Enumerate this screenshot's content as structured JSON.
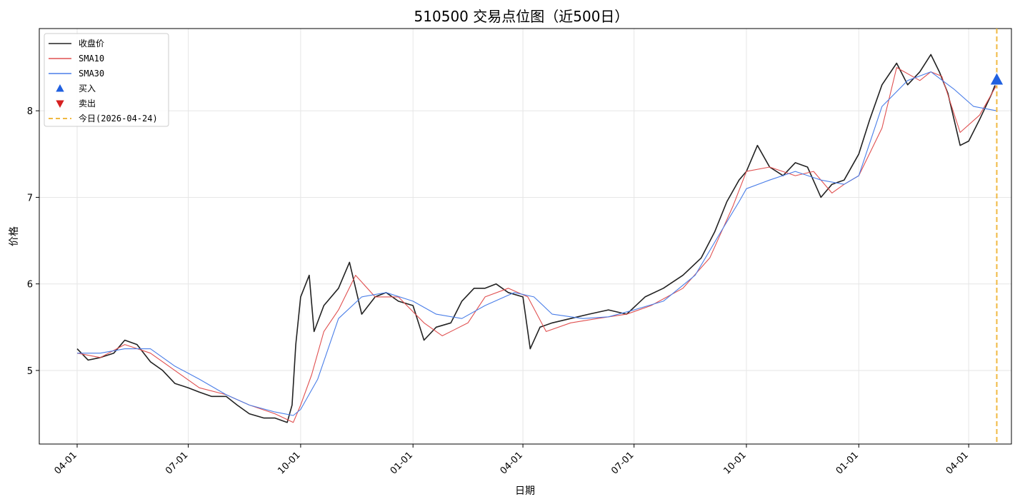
{
  "chart_data": {
    "type": "line",
    "title": "510500 交易点位图（近500日）",
    "xlabel": "日期",
    "ylabel": "价格",
    "ylim": [
      4.15,
      8.95
    ],
    "xlim": [
      "2024-03-01",
      "2026-05-06"
    ],
    "grid": true,
    "legend_position": "top-left",
    "x_ticks": [
      {
        "date": "2024-04-01",
        "label": "04-01"
      },
      {
        "date": "2024-07-01",
        "label": "07-01"
      },
      {
        "date": "2024-10-01",
        "label": "10-01"
      },
      {
        "date": "2025-01-01",
        "label": "01-01"
      },
      {
        "date": "2025-04-01",
        "label": "04-01"
      },
      {
        "date": "2025-07-01",
        "label": "07-01"
      },
      {
        "date": "2025-10-01",
        "label": "10-01"
      },
      {
        "date": "2026-01-01",
        "label": "01-01"
      },
      {
        "date": "2026-04-01",
        "label": "04-01"
      }
    ],
    "y_ticks": [
      5,
      6,
      7,
      8
    ],
    "series": [
      {
        "name": "收盘价",
        "color": "#222222",
        "x": [
          "2024-04-01",
          "2024-04-10",
          "2024-04-20",
          "2024-05-01",
          "2024-05-10",
          "2024-05-20",
          "2024-05-31",
          "2024-06-10",
          "2024-06-20",
          "2024-07-01",
          "2024-07-10",
          "2024-07-20",
          "2024-08-01",
          "2024-08-10",
          "2024-08-20",
          "2024-09-01",
          "2024-09-10",
          "2024-09-20",
          "2024-09-24",
          "2024-09-27",
          "2024-10-01",
          "2024-10-08",
          "2024-10-12",
          "2024-10-20",
          "2024-11-01",
          "2024-11-10",
          "2024-11-20",
          "2024-12-01",
          "2024-12-10",
          "2024-12-20",
          "2025-01-01",
          "2025-01-10",
          "2025-01-20",
          "2025-02-01",
          "2025-02-10",
          "2025-02-20",
          "2025-03-01",
          "2025-03-10",
          "2025-03-20",
          "2025-04-01",
          "2025-04-07",
          "2025-04-15",
          "2025-04-25",
          "2025-05-10",
          "2025-05-25",
          "2025-06-10",
          "2025-06-25",
          "2025-07-10",
          "2025-07-25",
          "2025-08-10",
          "2025-08-25",
          "2025-09-05",
          "2025-09-15",
          "2025-09-25",
          "2025-10-01",
          "2025-10-10",
          "2025-10-20",
          "2025-10-31",
          "2025-11-10",
          "2025-11-20",
          "2025-12-01",
          "2025-12-10",
          "2025-12-20",
          "2026-01-01",
          "2026-01-10",
          "2026-01-20",
          "2026-02-01",
          "2026-02-10",
          "2026-02-20",
          "2026-03-01",
          "2026-03-08",
          "2026-03-15",
          "2026-03-25",
          "2026-04-01",
          "2026-04-10",
          "2026-04-20",
          "2026-04-24"
        ],
        "values": [
          5.25,
          5.12,
          5.15,
          5.2,
          5.35,
          5.3,
          5.1,
          5.0,
          4.85,
          4.8,
          4.75,
          4.7,
          4.7,
          4.6,
          4.5,
          4.45,
          4.45,
          4.4,
          4.6,
          5.3,
          5.85,
          6.1,
          5.45,
          5.75,
          5.95,
          6.25,
          5.65,
          5.85,
          5.9,
          5.8,
          5.75,
          5.35,
          5.5,
          5.55,
          5.8,
          5.95,
          5.95,
          6.0,
          5.9,
          5.85,
          5.25,
          5.5,
          5.55,
          5.6,
          5.65,
          5.7,
          5.65,
          5.85,
          5.95,
          6.1,
          6.3,
          6.6,
          6.95,
          7.2,
          7.3,
          7.6,
          7.35,
          7.25,
          7.4,
          7.35,
          7.0,
          7.15,
          7.2,
          7.5,
          7.9,
          8.3,
          8.55,
          8.3,
          8.45,
          8.65,
          8.45,
          8.2,
          7.6,
          7.65,
          7.9,
          8.2,
          8.35
        ]
      },
      {
        "name": "SMA10",
        "color": "#e05050",
        "x": [
          "2024-04-01",
          "2024-04-20",
          "2024-05-10",
          "2024-05-31",
          "2024-06-20",
          "2024-07-10",
          "2024-08-01",
          "2024-08-20",
          "2024-09-10",
          "2024-09-25",
          "2024-10-01",
          "2024-10-10",
          "2024-10-20",
          "2024-11-01",
          "2024-11-15",
          "2024-12-01",
          "2024-12-20",
          "2025-01-10",
          "2025-01-25",
          "2025-02-15",
          "2025-03-01",
          "2025-03-20",
          "2025-04-05",
          "2025-04-20",
          "2025-05-10",
          "2025-06-01",
          "2025-06-25",
          "2025-07-15",
          "2025-08-10",
          "2025-09-01",
          "2025-09-20",
          "2025-10-01",
          "2025-10-20",
          "2025-11-10",
          "2025-11-25",
          "2025-12-10",
          "2025-12-20",
          "2026-01-01",
          "2026-01-20",
          "2026-02-01",
          "2026-02-20",
          "2026-03-01",
          "2026-03-10",
          "2026-03-25",
          "2026-04-10",
          "2026-04-24"
        ],
        "values": [
          5.2,
          5.15,
          5.3,
          5.2,
          5.0,
          4.8,
          4.72,
          4.6,
          4.5,
          4.4,
          4.6,
          4.95,
          5.45,
          5.7,
          6.1,
          5.85,
          5.85,
          5.55,
          5.4,
          5.55,
          5.85,
          5.95,
          5.85,
          5.45,
          5.55,
          5.6,
          5.65,
          5.75,
          5.95,
          6.3,
          6.9,
          7.3,
          7.35,
          7.25,
          7.3,
          7.05,
          7.15,
          7.25,
          7.8,
          8.5,
          8.35,
          8.45,
          8.4,
          7.75,
          7.95,
          8.3
        ]
      },
      {
        "name": "SMA30",
        "color": "#4a7ee8",
        "x": [
          "2024-04-01",
          "2024-04-20",
          "2024-05-10",
          "2024-05-31",
          "2024-06-20",
          "2024-07-10",
          "2024-08-01",
          "2024-08-20",
          "2024-09-10",
          "2024-09-25",
          "2024-10-01",
          "2024-10-15",
          "2024-11-01",
          "2024-11-20",
          "2024-12-10",
          "2025-01-01",
          "2025-01-20",
          "2025-02-10",
          "2025-03-01",
          "2025-03-25",
          "2025-04-10",
          "2025-04-25",
          "2025-05-20",
          "2025-06-10",
          "2025-07-01",
          "2025-07-25",
          "2025-08-20",
          "2025-09-10",
          "2025-09-25",
          "2025-10-01",
          "2025-10-20",
          "2025-11-10",
          "2025-12-01",
          "2025-12-20",
          "2026-01-01",
          "2026-01-20",
          "2026-02-10",
          "2026-03-01",
          "2026-03-20",
          "2026-04-05",
          "2026-04-24"
        ],
        "values": [
          5.2,
          5.2,
          5.25,
          5.25,
          5.05,
          4.9,
          4.72,
          4.6,
          4.52,
          4.48,
          4.55,
          4.9,
          5.6,
          5.85,
          5.9,
          5.8,
          5.65,
          5.6,
          5.75,
          5.9,
          5.85,
          5.65,
          5.6,
          5.62,
          5.7,
          5.8,
          6.1,
          6.6,
          6.95,
          7.1,
          7.2,
          7.3,
          7.2,
          7.15,
          7.25,
          8.05,
          8.35,
          8.45,
          8.25,
          8.05,
          8.0
        ]
      }
    ],
    "buy_markers": [
      {
        "date": "2026-04-24",
        "value": 8.36
      }
    ],
    "sell_markers": [],
    "today_line": {
      "date": "2026-04-24",
      "color": "#f0b942"
    },
    "legend": [
      {
        "label": "收盘价",
        "kind": "line",
        "color": "#222222"
      },
      {
        "label": "SMA10",
        "kind": "line",
        "color": "#e05050"
      },
      {
        "label": "SMA30",
        "kind": "line",
        "color": "#4a7ee8"
      },
      {
        "label": "买入",
        "kind": "up-triangle",
        "color": "#2060e0"
      },
      {
        "label": "卖出",
        "kind": "down-triangle",
        "color": "#d62020"
      },
      {
        "label": "今日(2026-04-24)",
        "kind": "dashed-line",
        "color": "#f0b942"
      }
    ]
  }
}
